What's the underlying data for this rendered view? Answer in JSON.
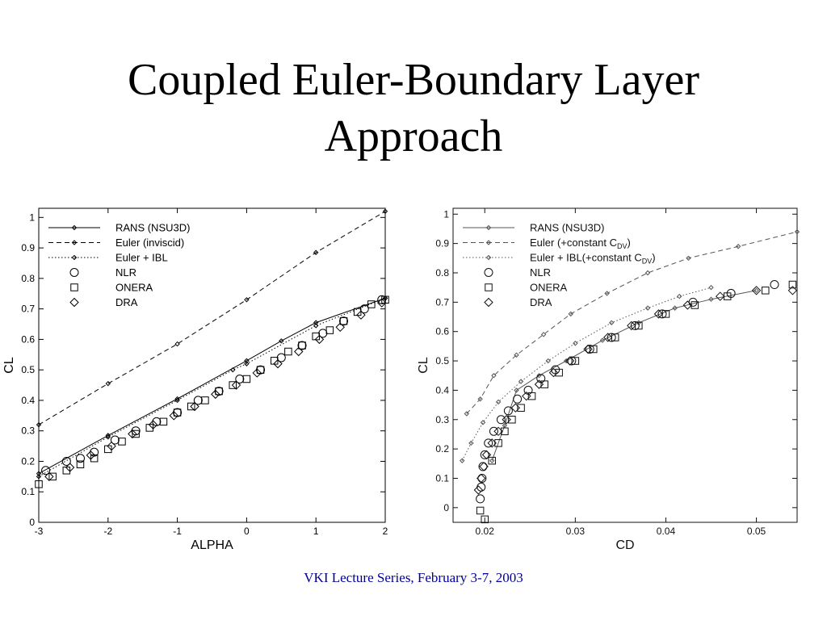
{
  "slide": {
    "title_line1": "Coupled Euler-Boundary Layer",
    "title_line2": "Approach",
    "footer": "VKI Lecture Series, February 3-7, 2003",
    "footer_color": "#000099"
  },
  "chart_data": [
    {
      "type": "line",
      "xlabel": "ALPHA",
      "ylabel": "CL",
      "xlim": [
        -3,
        2
      ],
      "ylim": [
        0,
        1.03
      ],
      "xticks": [
        "-3",
        "-2",
        "-1",
        "0",
        "1",
        "2"
      ],
      "yticks": [
        "0",
        "0.1",
        "0.2",
        "0.3",
        "0.4",
        "0.5",
        "0.6",
        "0.7",
        "0.8",
        "0.9",
        "1"
      ],
      "legend_position": "top-left",
      "grid": false,
      "series": [
        {
          "name": "RANS (NSU3D)",
          "style": "line-solid-diamond",
          "x": [
            -3,
            -2,
            -1,
            0,
            0.5,
            1,
            2
          ],
          "y": [
            0.16,
            0.285,
            0.405,
            0.53,
            0.595,
            0.655,
            0.735
          ]
        },
        {
          "name": "Euler (inviscid)",
          "style": "line-dashed-diamond",
          "x": [
            -3,
            -2,
            -1,
            0,
            1,
            2
          ],
          "y": [
            0.32,
            0.455,
            0.585,
            0.73,
            0.885,
            1.02
          ]
        },
        {
          "name": "Euler + IBL",
          "style": "line-dotted-diamond",
          "x": [
            -3,
            -2,
            -1,
            -0.2,
            0,
            1,
            2
          ],
          "y": [
            0.15,
            0.28,
            0.4,
            0.5,
            0.52,
            0.645,
            0.735
          ]
        },
        {
          "name": "NLR",
          "style": "marker-circle",
          "x": [
            -2.9,
            -2.6,
            -2.4,
            -2.2,
            -1.9,
            -1.6,
            -1.3,
            -1.0,
            -0.7,
            -0.4,
            -0.1,
            0.2,
            0.5,
            0.8,
            1.1,
            1.4,
            1.7,
            1.95
          ],
          "y": [
            0.17,
            0.2,
            0.21,
            0.23,
            0.27,
            0.3,
            0.33,
            0.36,
            0.4,
            0.43,
            0.47,
            0.5,
            0.54,
            0.58,
            0.62,
            0.66,
            0.7,
            0.73
          ]
        },
        {
          "name": "ONERA",
          "style": "marker-square",
          "x": [
            -3.0,
            -2.8,
            -2.6,
            -2.4,
            -2.2,
            -2.0,
            -1.8,
            -1.6,
            -1.4,
            -1.2,
            -1.0,
            -0.8,
            -0.6,
            -0.4,
            -0.2,
            0.0,
            0.2,
            0.4,
            0.6,
            0.8,
            1.0,
            1.2,
            1.4,
            1.6,
            1.8,
            2.0
          ],
          "y": [
            0.125,
            0.15,
            0.17,
            0.19,
            0.21,
            0.24,
            0.265,
            0.29,
            0.31,
            0.33,
            0.36,
            0.38,
            0.4,
            0.43,
            0.45,
            0.47,
            0.5,
            0.53,
            0.56,
            0.58,
            0.61,
            0.63,
            0.66,
            0.69,
            0.715,
            0.73
          ]
        },
        {
          "name": "DRA",
          "style": "marker-diamond",
          "x": [
            -2.85,
            -2.55,
            -2.25,
            -1.95,
            -1.65,
            -1.35,
            -1.05,
            -0.75,
            -0.45,
            -0.15,
            0.15,
            0.45,
            0.75,
            1.05,
            1.35,
            1.65,
            1.95
          ],
          "y": [
            0.15,
            0.18,
            0.22,
            0.25,
            0.29,
            0.32,
            0.35,
            0.38,
            0.42,
            0.45,
            0.49,
            0.52,
            0.56,
            0.6,
            0.64,
            0.68,
            0.72
          ]
        }
      ]
    },
    {
      "type": "line",
      "xlabel": "CD",
      "ylabel": "CL",
      "xlim": [
        0.0165,
        0.0545
      ],
      "ylim": [
        -0.05,
        1.02
      ],
      "xticks": [
        "0.02",
        "0.03",
        "0.04",
        "0.05"
      ],
      "xtick_values": [
        0.02,
        0.03,
        0.04,
        0.05
      ],
      "yticks": [
        "0",
        "0.1",
        "0.2",
        "0.3",
        "0.4",
        "0.5",
        "0.6",
        "0.7",
        "0.8",
        "0.9",
        "1"
      ],
      "legend_position": "top-left",
      "grid": false,
      "series": [
        {
          "name": "RANS (NSU3D)",
          "legend_prefix": "RANS (NSU3D)",
          "legend_sub": "",
          "style": "line-solid-diamond",
          "x": [
            0.0208,
            0.0222,
            0.0235,
            0.026,
            0.029,
            0.033,
            0.037,
            0.041,
            0.045,
            0.05
          ],
          "y": [
            0.16,
            0.28,
            0.4,
            0.45,
            0.5,
            0.57,
            0.63,
            0.68,
            0.71,
            0.74
          ]
        },
        {
          "name": "Euler (+constant CDV)",
          "legend_prefix": "Euler (+constant C",
          "legend_sub": "DV",
          "legend_suffix": ")",
          "style": "line-dashed-diamond",
          "x": [
            0.018,
            0.0195,
            0.021,
            0.0235,
            0.0265,
            0.0295,
            0.0335,
            0.038,
            0.0425,
            0.048,
            0.0545
          ],
          "y": [
            0.32,
            0.37,
            0.45,
            0.52,
            0.59,
            0.66,
            0.73,
            0.8,
            0.85,
            0.89,
            0.94
          ]
        },
        {
          "name": "Euler + IBL(+constant CDV)",
          "legend_prefix": "Euler + IBL(+constant C",
          "legend_sub": "DV",
          "legend_suffix": ")",
          "style": "line-dotted-diamond",
          "x": [
            0.0175,
            0.0185,
            0.0198,
            0.0215,
            0.024,
            0.027,
            0.03,
            0.034,
            0.038,
            0.0415,
            0.045
          ],
          "y": [
            0.16,
            0.22,
            0.29,
            0.36,
            0.43,
            0.5,
            0.56,
            0.63,
            0.68,
            0.72,
            0.75
          ]
        },
        {
          "name": "NLR",
          "style": "marker-circle",
          "x": [
            0.0195,
            0.0196,
            0.0197,
            0.0198,
            0.02,
            0.0204,
            0.021,
            0.0218,
            0.0226,
            0.0236,
            0.0248,
            0.0262,
            0.0278,
            0.0296,
            0.0316,
            0.034,
            0.0366,
            0.0396,
            0.043,
            0.0472,
            0.052
          ],
          "y": [
            0.03,
            0.07,
            0.1,
            0.14,
            0.18,
            0.22,
            0.26,
            0.3,
            0.33,
            0.37,
            0.4,
            0.44,
            0.47,
            0.5,
            0.54,
            0.58,
            0.62,
            0.66,
            0.7,
            0.73,
            0.76
          ]
        },
        {
          "name": "ONERA",
          "style": "marker-square",
          "x": [
            0.0195,
            0.02,
            0.0208,
            0.0215,
            0.0222,
            0.023,
            0.024,
            0.0252,
            0.0266,
            0.0282,
            0.03,
            0.032,
            0.0344,
            0.037,
            0.04,
            0.0432,
            0.0468,
            0.051,
            0.054
          ],
          "y": [
            -0.01,
            -0.04,
            0.16,
            0.22,
            0.26,
            0.3,
            0.34,
            0.38,
            0.42,
            0.46,
            0.5,
            0.54,
            0.58,
            0.62,
            0.66,
            0.69,
            0.72,
            0.74,
            0.76
          ]
        },
        {
          "name": "DRA",
          "style": "marker-diamond",
          "x": [
            0.0193,
            0.0196,
            0.0199,
            0.0202,
            0.0208,
            0.0215,
            0.0224,
            0.0234,
            0.0246,
            0.026,
            0.0276,
            0.0294,
            0.0314,
            0.0336,
            0.0362,
            0.0392,
            0.0424,
            0.046,
            0.05,
            0.054
          ],
          "y": [
            0.06,
            0.1,
            0.14,
            0.18,
            0.22,
            0.26,
            0.3,
            0.34,
            0.38,
            0.42,
            0.46,
            0.5,
            0.54,
            0.58,
            0.62,
            0.66,
            0.69,
            0.72,
            0.74,
            0.74
          ]
        }
      ]
    }
  ]
}
